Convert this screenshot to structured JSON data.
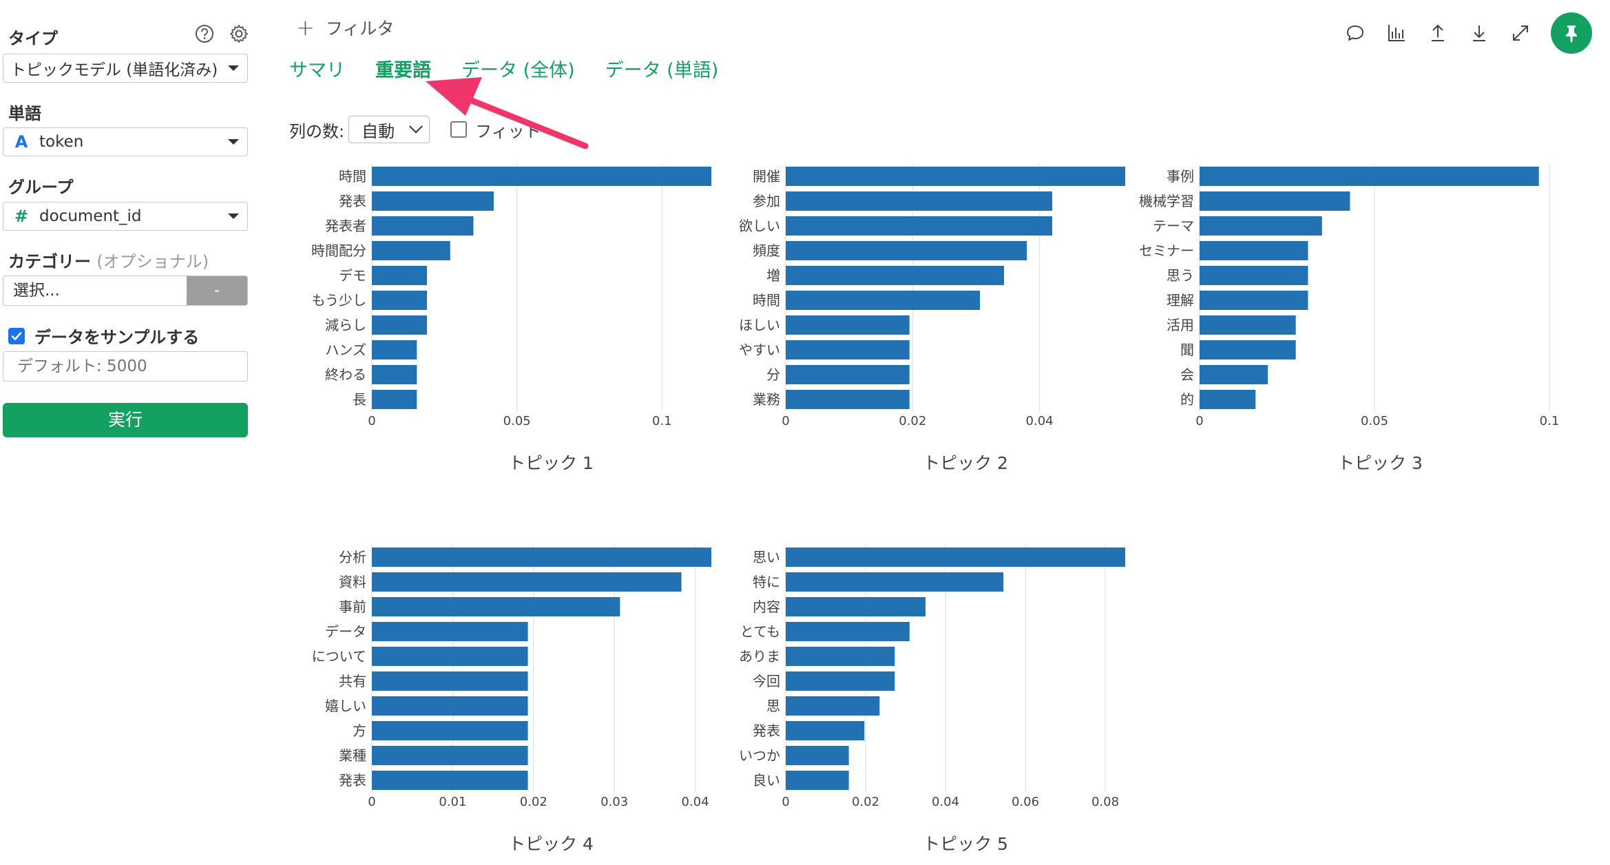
{
  "sidebar": {
    "type_label": "タイプ",
    "type_value": "トピックモデル (単語化済み)",
    "word_label": "単語",
    "word_icon": "A",
    "word_value": "token",
    "group_label": "グループ",
    "group_icon": "#",
    "group_value": "document_id",
    "category_label": "カテゴリー",
    "category_optional": "(オプショナル)",
    "category_placeholder": "選択...",
    "category_button": "-",
    "sample_label": "データをサンプルする",
    "sample_checked": true,
    "sample_placeholder": "デフォルト: 5000",
    "run_label": "実行",
    "help_icon": "question-circle-icon",
    "settings_icon": "gear-icon"
  },
  "header": {
    "filter_label": "フィルタ",
    "tabs": [
      {
        "label": "サマリ",
        "active": false
      },
      {
        "label": "重要語",
        "active": true
      },
      {
        "label": "データ (全体)",
        "active": false
      },
      {
        "label": "データ (単語)",
        "active": false
      }
    ],
    "toolbar_icons": [
      "comment-icon",
      "bar-chart-icon",
      "upload-icon",
      "download-icon",
      "expand-icon",
      "pin-icon"
    ]
  },
  "controls": {
    "columns_label": "列の数:",
    "columns_value": "自動",
    "fit_label": "フィット",
    "fit_checked": false
  },
  "colors": {
    "accent": "#13a061",
    "bar": "#2271b3",
    "arrow": "#f0356a"
  },
  "chart_data": [
    {
      "type": "bar",
      "orientation": "horizontal",
      "title": "トピック 1",
      "categories": [
        "時間",
        "発表",
        "発表者",
        "時間配分",
        "デモ",
        "もう少し",
        "減らし",
        "ハンズ",
        "終わる",
        "長"
      ],
      "values": [
        0.117,
        0.042,
        0.035,
        0.027,
        0.019,
        0.019,
        0.019,
        0.0155,
        0.0155,
        0.0155
      ],
      "xlim": [
        0,
        0.117
      ],
      "ticks": [
        0,
        0.05,
        0.1
      ],
      "tick_labels": [
        "0",
        "0.05",
        "0.1"
      ],
      "grid": true
    },
    {
      "type": "bar",
      "orientation": "horizontal",
      "title": "トピック 2",
      "categories": [
        "開催",
        "参加",
        "欲しい",
        "頻度",
        "増",
        "時間",
        "ほしい",
        "やすい",
        "分",
        "業務"
      ],
      "values": [
        0.0535,
        0.042,
        0.042,
        0.038,
        0.0344,
        0.0306,
        0.0195,
        0.0195,
        0.0195,
        0.0195
      ],
      "xlim": [
        0,
        0.0535
      ],
      "ticks": [
        0,
        0.02,
        0.04
      ],
      "tick_labels": [
        "0",
        "0.02",
        "0.04"
      ],
      "grid": true
    },
    {
      "type": "bar",
      "orientation": "horizontal",
      "title": "トピック 3",
      "categories": [
        "事例",
        "機械学習",
        "テーマ",
        "セミナー",
        "思う",
        "理解",
        "活用",
        "聞",
        "会",
        "的"
      ],
      "values": [
        0.097,
        0.043,
        0.035,
        0.031,
        0.031,
        0.031,
        0.0275,
        0.0275,
        0.0195,
        0.016
      ],
      "xlim": [
        0,
        0.1
      ],
      "ticks": [
        0,
        0.05,
        0.1
      ],
      "tick_labels": [
        "0",
        "0.05",
        "0.1"
      ],
      "grid": true
    },
    {
      "type": "bar",
      "orientation": "horizontal",
      "title": "トピック 4",
      "categories": [
        "分析",
        "資料",
        "事前",
        "データ",
        "について",
        "共有",
        "嬉しい",
        "方",
        "業種",
        "発表"
      ],
      "values": [
        0.042,
        0.0383,
        0.0307,
        0.0193,
        0.0193,
        0.0193,
        0.0193,
        0.0193,
        0.0193,
        0.0193
      ],
      "xlim": [
        0,
        0.042
      ],
      "ticks": [
        0,
        0.01,
        0.02,
        0.03,
        0.04
      ],
      "tick_labels": [
        "0",
        "0.01",
        "0.02",
        "0.03",
        "0.04"
      ],
      "grid": true
    },
    {
      "type": "bar",
      "orientation": "horizontal",
      "title": "トピック 5",
      "categories": [
        "思い",
        "特に",
        "内容",
        "とても",
        "ありま",
        "今回",
        "思",
        "発表",
        "いつか",
        "良い"
      ],
      "values": [
        0.085,
        0.0545,
        0.035,
        0.031,
        0.0273,
        0.0273,
        0.0235,
        0.0197,
        0.0158,
        0.0158
      ],
      "xlim": [
        0,
        0.085
      ],
      "ticks": [
        0,
        0.02,
        0.04,
        0.06,
        0.08
      ],
      "tick_labels": [
        "0",
        "0.02",
        "0.04",
        "0.06",
        "0.08"
      ],
      "grid": true
    }
  ]
}
